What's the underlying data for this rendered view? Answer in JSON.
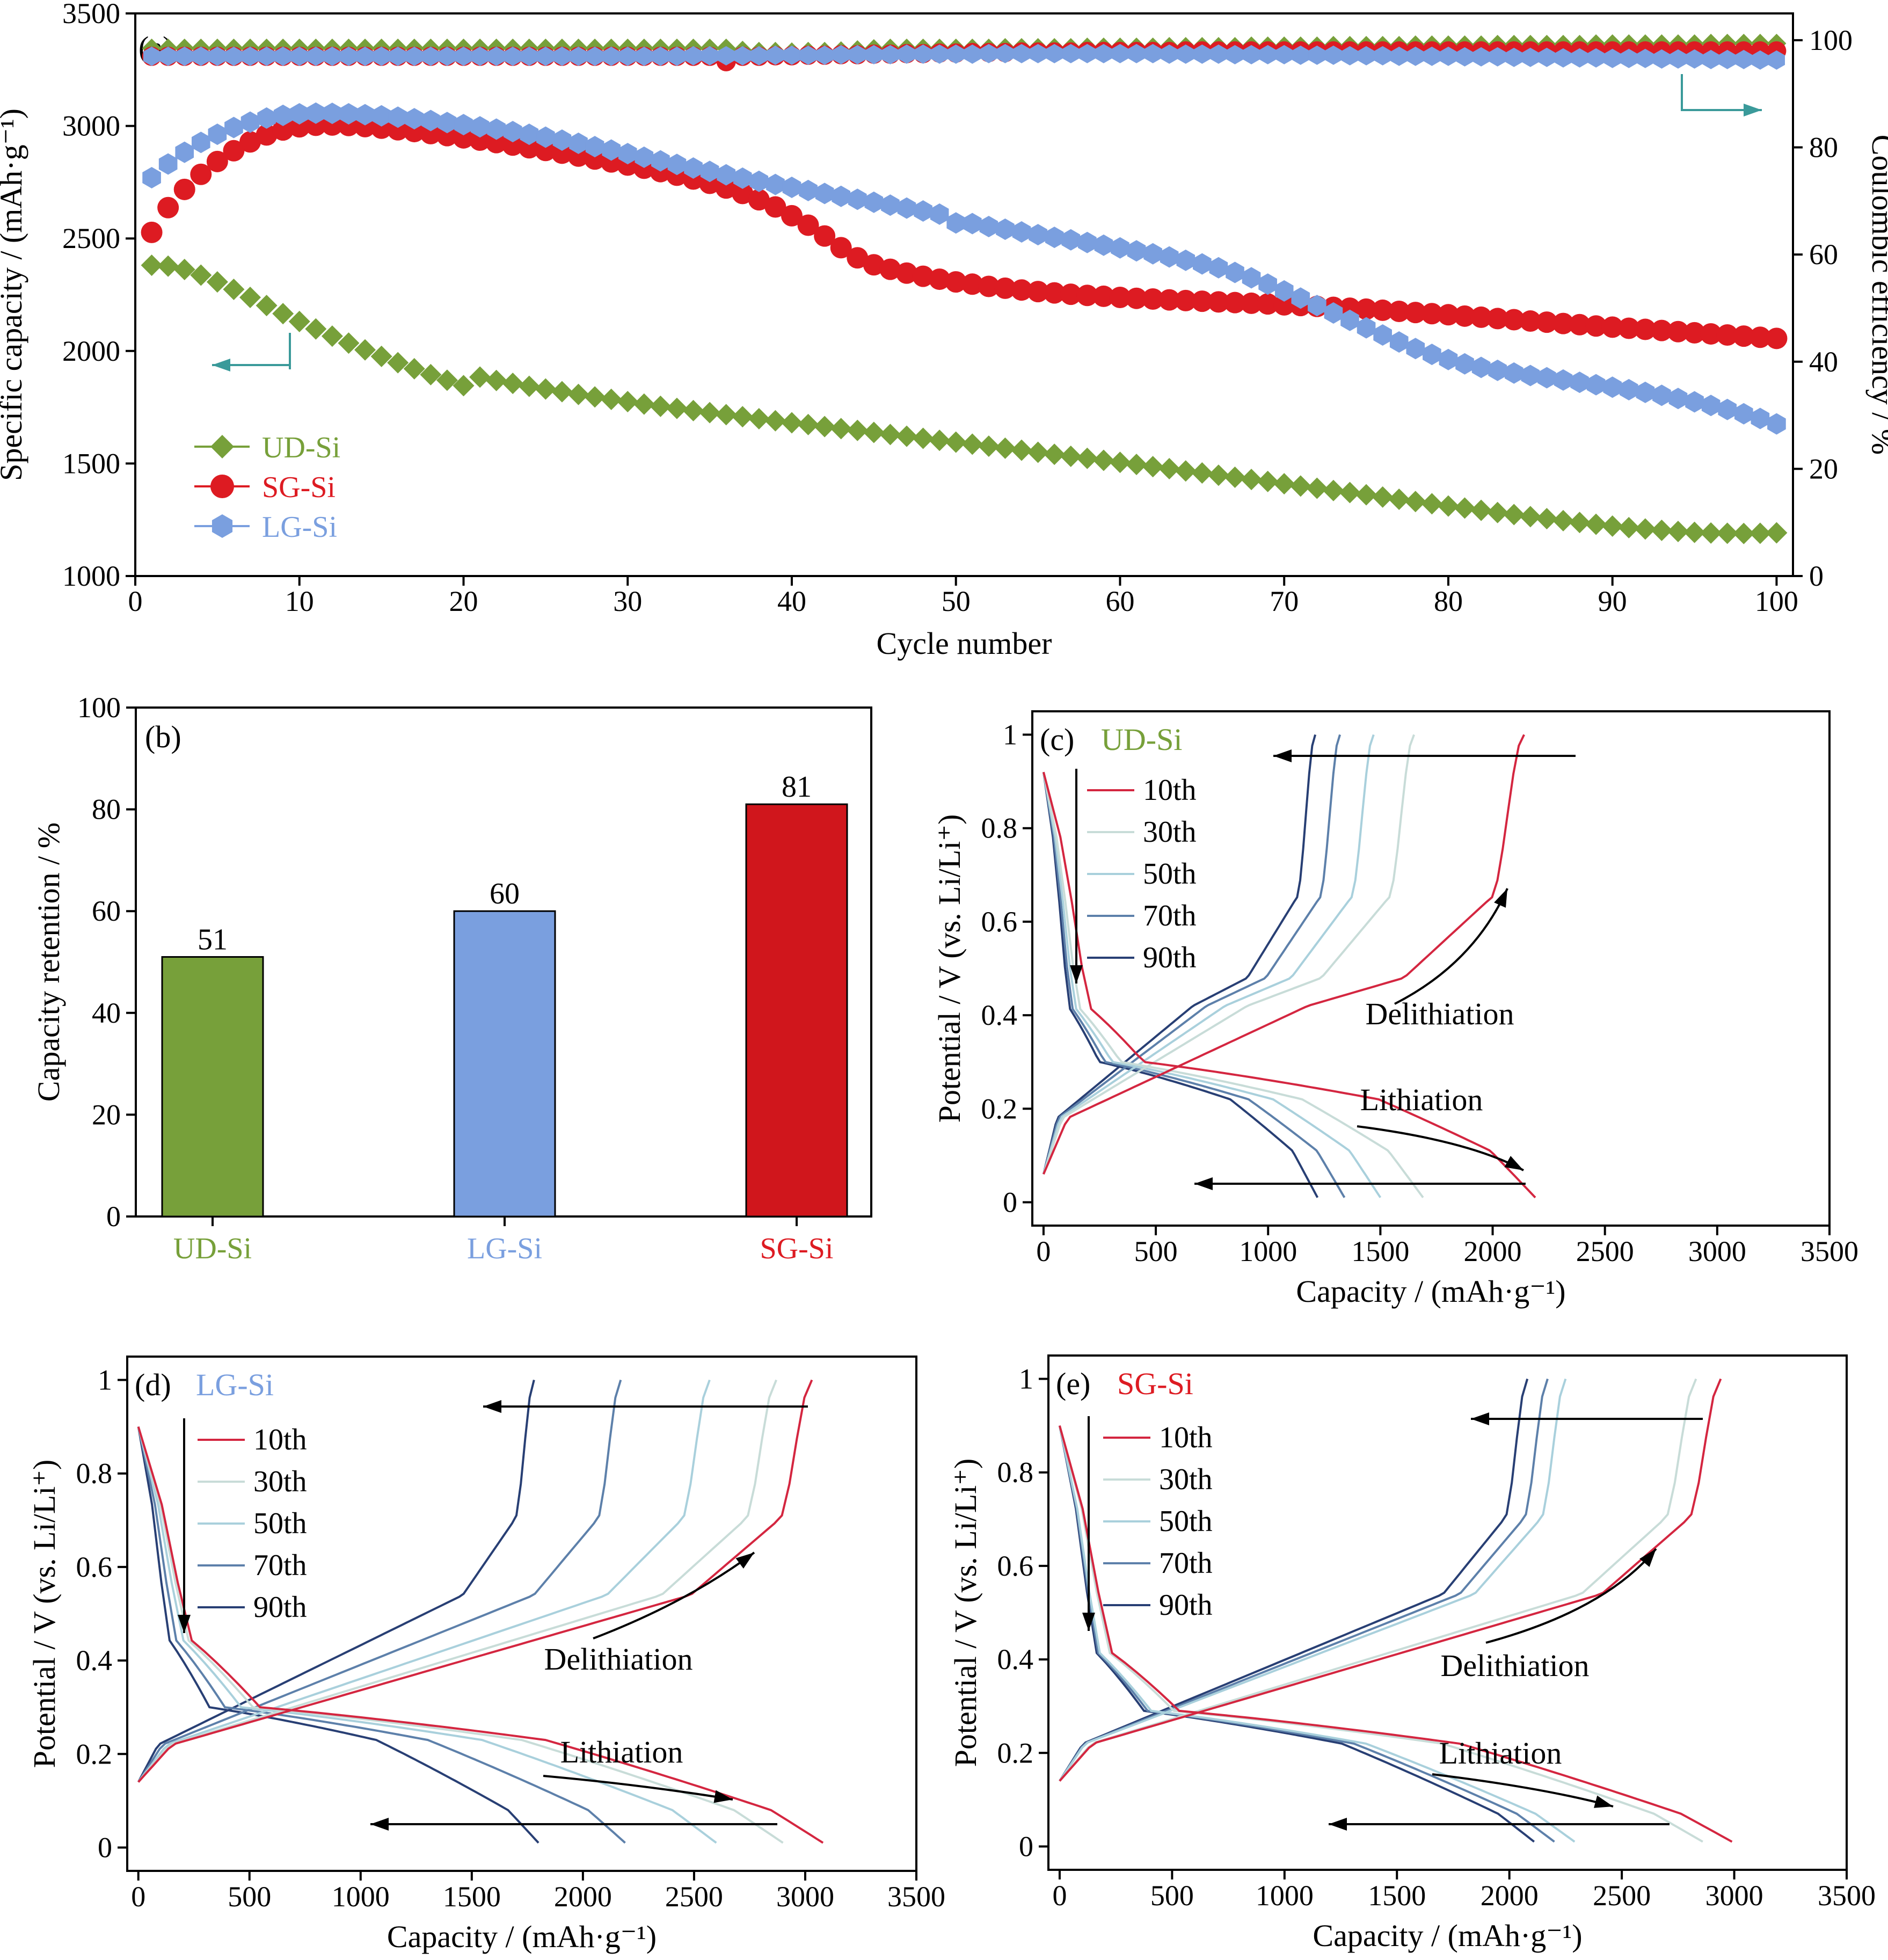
{
  "colors": {
    "ud": "#77a03a",
    "sg": "#dd1b22",
    "lg": "#7a9fdf",
    "c10": "#d42640",
    "c30": "#c8dcd8",
    "c50": "#a9d0dc",
    "c70": "#5d80aa",
    "c90": "#283f74",
    "teal": "#3a9a9a"
  },
  "chart_data": [
    {
      "panel": "(a)",
      "type": "scatter",
      "xlabel": "Cycle number",
      "ylabel": "Specific capacity / (mAh·g⁻¹)",
      "y2label": "Coulombic efficiency / %",
      "xlim": [
        0,
        101
      ],
      "ylim": [
        1000,
        3500
      ],
      "y2lim": [
        0,
        105
      ],
      "xticks": [
        0,
        10,
        20,
        30,
        40,
        50,
        60,
        70,
        80,
        90,
        100
      ],
      "yticks": [
        1000,
        1500,
        2000,
        2500,
        3000,
        3500
      ],
      "y2ticks": [
        0,
        20,
        40,
        60,
        80,
        100
      ],
      "legend": "bottom-left",
      "x": [
        1,
        2,
        3,
        4,
        5,
        6,
        7,
        8,
        9,
        10,
        11,
        12,
        13,
        14,
        15,
        16,
        17,
        18,
        19,
        20,
        21,
        22,
        23,
        24,
        25,
        26,
        27,
        28,
        29,
        30,
        31,
        32,
        33,
        34,
        35,
        36,
        37,
        38,
        39,
        40,
        41,
        42,
        43,
        44,
        45,
        46,
        47,
        48,
        49,
        50,
        51,
        52,
        53,
        54,
        55,
        56,
        57,
        58,
        59,
        60,
        61,
        62,
        63,
        64,
        65,
        66,
        67,
        68,
        69,
        70,
        71,
        72,
        73,
        74,
        75,
        76,
        77,
        78,
        79,
        80,
        81,
        82,
        83,
        84,
        85,
        86,
        87,
        88,
        89,
        90,
        91,
        92,
        93,
        94,
        95,
        96,
        97,
        98,
        99,
        100
      ],
      "series": [
        {
          "name": "UD-Si",
          "color": "ud",
          "marker": "diamond",
          "capacity": [
            2381,
            2377,
            2362,
            2337,
            2307,
            2274,
            2238,
            2202,
            2166,
            2131,
            2098,
            2066,
            2035,
            2005,
            1976,
            1948,
            1921,
            1895,
            1870,
            1846,
            1884,
            1869,
            1856,
            1843,
            1831,
            1819,
            1807,
            1796,
            1785,
            1775,
            1764,
            1754,
            1745,
            1735,
            1726,
            1717,
            1708,
            1699,
            1690,
            1681,
            1673,
            1664,
            1655,
            1647,
            1638,
            1629,
            1621,
            1612,
            1603,
            1595,
            1586,
            1577,
            1568,
            1559,
            1550,
            1541,
            1532,
            1523,
            1514,
            1505,
            1496,
            1486,
            1477,
            1467,
            1458,
            1448,
            1439,
            1429,
            1420,
            1410,
            1400,
            1390,
            1380,
            1371,
            1361,
            1351,
            1341,
            1331,
            1321,
            1311,
            1302,
            1292,
            1282,
            1273,
            1264,
            1255,
            1246,
            1238,
            1230,
            1222,
            1215,
            1209,
            1203,
            1198,
            1194,
            1191,
            1190,
            1189,
            1190,
            1192
          ],
          "ce": [
            98.5,
            98.5,
            98.5,
            98.5,
            98.5,
            98.5,
            98.5,
            98.5,
            98.5,
            98.5,
            98.5,
            98.5,
            98.5,
            98.5,
            98.5,
            98.5,
            98.5,
            98.5,
            98.5,
            98.5,
            98.5,
            98.5,
            98.5,
            98.5,
            98.5,
            98.5,
            98.5,
            98.5,
            98.5,
            98.5,
            98.5,
            98.5,
            98.5,
            98.5,
            98.5,
            98.5,
            98.1,
            97.9,
            97.9,
            97.8,
            97.9,
            97.9,
            98.0,
            98.2,
            98.4,
            98.5,
            98.5,
            98.5,
            98.5,
            98.5,
            98.5,
            98.5,
            98.6,
            98.6,
            98.6,
            98.6,
            98.6,
            98.7,
            98.7,
            98.7,
            98.7,
            98.7,
            98.8,
            98.8,
            98.8,
            98.8,
            98.8,
            98.9,
            98.9,
            98.9,
            98.9,
            98.9,
            99.0,
            99.0,
            99.0,
            99.0,
            99.0,
            99.1,
            99.1,
            99.1,
            99.1,
            99.1,
            99.2,
            99.2,
            99.2,
            99.2,
            99.2,
            99.2,
            99.3,
            99.3,
            99.3,
            99.3,
            99.3,
            99.3,
            99.3,
            99.4,
            99.4,
            99.4,
            99.4,
            99.4
          ]
        },
        {
          "name": "SG-Si",
          "color": "sg",
          "marker": "circle",
          "capacity": [
            2527,
            2637,
            2718,
            2785,
            2842,
            2890,
            2929,
            2960,
            2982,
            2996,
            3003,
            3004,
            3002,
            2997,
            2990,
            2983,
            2975,
            2966,
            2957,
            2947,
            2937,
            2926,
            2915,
            2903,
            2891,
            2879,
            2866,
            2853,
            2840,
            2826,
            2812,
            2797,
            2781,
            2764,
            2745,
            2724,
            2700,
            2672,
            2640,
            2601,
            2559,
            2511,
            2459,
            2414,
            2383,
            2363,
            2346,
            2332,
            2319,
            2307,
            2297,
            2287,
            2279,
            2271,
            2264,
            2258,
            2252,
            2247,
            2243,
            2238,
            2234,
            2231,
            2227,
            2224,
            2221,
            2218,
            2215,
            2212,
            2209,
            2205,
            2202,
            2198,
            2194,
            2190,
            2186,
            2181,
            2176,
            2171,
            2166,
            2161,
            2155,
            2150,
            2144,
            2139,
            2133,
            2128,
            2122,
            2117,
            2111,
            2106,
            2101,
            2096,
            2091,
            2086,
            2081,
            2076,
            2071,
            2066,
            2061,
            2056
          ],
          "ce": [
            97.0,
            97.0,
            97.0,
            97.0,
            97.0,
            97.0,
            97.0,
            97.0,
            97.0,
            97.0,
            97.0,
            97.0,
            97.0,
            97.0,
            97.0,
            97.0,
            97.0,
            97.0,
            97.0,
            97.0,
            97.0,
            97.0,
            97.0,
            97.0,
            97.0,
            97.0,
            97.0,
            97.0,
            97.0,
            97.0,
            97.0,
            97.0,
            97.0,
            97.0,
            97.0,
            96.0,
            97.0,
            97.0,
            97.1,
            97.1,
            97.2,
            97.2,
            97.3,
            97.3,
            97.4,
            97.4,
            97.5,
            97.5,
            97.6,
            97.6,
            97.7,
            97.7,
            97.7,
            97.8,
            97.8,
            97.8,
            97.8,
            97.9,
            97.9,
            97.9,
            97.9,
            97.9,
            97.9,
            98.0,
            98.0,
            98.0,
            98.0,
            98.0,
            98.0,
            98.0,
            98.0,
            98.0,
            98.0,
            98.0,
            98.0,
            98.0,
            98.0,
            98.0,
            98.0,
            98.0,
            98.0,
            98.0,
            98.0,
            98.0,
            98.0,
            98.0,
            98.0,
            98.0,
            98.0,
            98.0,
            98.0,
            98.0,
            98.0,
            98.0,
            98.0,
            98.0,
            98.0,
            98.0,
            98.0,
            98.0
          ]
        },
        {
          "name": "LG-Si",
          "color": "lg",
          "marker": "hexagon",
          "capacity": [
            2770,
            2831,
            2883,
            2927,
            2963,
            2993,
            3017,
            3035,
            3047,
            3054,
            3057,
            3056,
            3054,
            3050,
            3045,
            3039,
            3032,
            3024,
            3015,
            3006,
            2996,
            2986,
            2975,
            2963,
            2950,
            2937,
            2923,
            2908,
            2893,
            2877,
            2861,
            2845,
            2829,
            2813,
            2798,
            2783,
            2768,
            2754,
            2740,
            2727,
            2713,
            2700,
            2687,
            2674,
            2661,
            2648,
            2635,
            2622,
            2608,
            2569,
            2566,
            2553,
            2541,
            2529,
            2517,
            2505,
            2494,
            2482,
            2470,
            2458,
            2445,
            2432,
            2418,
            2403,
            2387,
            2370,
            2349,
            2325,
            2297,
            2267,
            2235,
            2202,
            2169,
            2136,
            2103,
            2071,
            2040,
            2011,
            1985,
            1962,
            1943,
            1927,
            1914,
            1902,
            1891,
            1881,
            1871,
            1861,
            1850,
            1839,
            1828,
            1816,
            1803,
            1789,
            1774,
            1758,
            1740,
            1721,
            1700,
            1676
          ],
          "ce": [
            97.0,
            97.0,
            97.0,
            97.0,
            97.0,
            97.0,
            97.0,
            97.0,
            97.0,
            97.0,
            97.0,
            97.0,
            97.0,
            97.0,
            97.0,
            97.0,
            97.0,
            97.0,
            97.0,
            97.0,
            97.0,
            97.0,
            97.0,
            97.0,
            97.0,
            97.0,
            97.0,
            97.0,
            97.0,
            97.0,
            97.0,
            97.0,
            97.0,
            97.1,
            97.1,
            97.1,
            97.1,
            97.1,
            97.2,
            97.2,
            97.2,
            97.2,
            97.3,
            97.3,
            97.3,
            97.3,
            97.4,
            97.4,
            97.4,
            97.4,
            97.4,
            97.5,
            97.5,
            97.5,
            97.5,
            97.5,
            97.5,
            97.5,
            97.5,
            97.5,
            97.5,
            97.5,
            97.4,
            97.4,
            97.4,
            97.4,
            97.3,
            97.3,
            97.3,
            97.3,
            97.2,
            97.2,
            97.2,
            97.1,
            97.1,
            97.1,
            97.0,
            97.0,
            97.0,
            97.0,
            96.9,
            96.9,
            96.9,
            96.8,
            96.8,
            96.8,
            96.7,
            96.7,
            96.7,
            96.6,
            96.6,
            96.6,
            96.5,
            96.5,
            96.5,
            96.4,
            96.4,
            96.4,
            96.3,
            96.3
          ]
        }
      ]
    },
    {
      "panel": "(b)",
      "type": "bar",
      "ylabel": "Capacity retention / %",
      "ylim": [
        0,
        100
      ],
      "yticks": [
        0,
        20,
        40,
        60,
        80,
        100
      ],
      "categories": [
        "UD-Si",
        "LG-Si",
        "SG-Si"
      ],
      "values": [
        51,
        60,
        81
      ],
      "bar_colors": [
        "#77a03a",
        "#7a9fdf",
        "#d0161c"
      ],
      "label_colors": [
        "ud",
        "lg",
        "sg"
      ]
    },
    {
      "panel": "(c)",
      "type": "line",
      "title": "UD-Si",
      "title_color": "ud",
      "xlabel": "Capacity / (mAh·g⁻¹)",
      "ylabel": "Potential / V (vs. Li/Li⁺)",
      "xlim": [
        -50,
        3500
      ],
      "ylim": [
        -0.05,
        1.05
      ],
      "xticks": [
        0,
        500,
        1000,
        1500,
        2000,
        2500,
        3000,
        3500
      ],
      "yticks": [
        0,
        0.2,
        0.4,
        0.6,
        0.8,
        1.0
      ],
      "annotations": {
        "delith": "Delithiation",
        "lith": "Lithiation"
      },
      "series": [
        {
          "name": "10th",
          "color": "c10",
          "lith_end": 2190,
          "delith_end": 2140,
          "shape": "ud"
        },
        {
          "name": "30th",
          "color": "c30",
          "lith_end": 1690,
          "delith_end": 1650,
          "shape": "ud"
        },
        {
          "name": "50th",
          "color": "c50",
          "lith_end": 1500,
          "delith_end": 1470,
          "shape": "ud"
        },
        {
          "name": "70th",
          "color": "c70",
          "lith_end": 1340,
          "delith_end": 1320,
          "shape": "ud"
        },
        {
          "name": "90th",
          "color": "c90",
          "lith_end": 1220,
          "delith_end": 1210,
          "shape": "ud"
        }
      ]
    },
    {
      "panel": "(d)",
      "type": "line",
      "title": "LG-Si",
      "title_color": "lg",
      "xlabel": "Capacity / (mAh·g⁻¹)",
      "ylabel": "Potential / V (vs. Li/Li⁺)",
      "xlim": [
        -50,
        3500
      ],
      "ylim": [
        -0.05,
        1.05
      ],
      "xticks": [
        0,
        500,
        1000,
        1500,
        2000,
        2500,
        3000,
        3500
      ],
      "yticks": [
        0,
        0.2,
        0.4,
        0.6,
        0.8,
        1.0
      ],
      "annotations": {
        "delith": "Delithiation",
        "lith": "Lithiation"
      },
      "series": [
        {
          "name": "10th",
          "color": "c10",
          "lith_end": 3080,
          "delith_end": 3030,
          "shape": "lg"
        },
        {
          "name": "30th",
          "color": "c30",
          "lith_end": 2900,
          "delith_end": 2870,
          "shape": "lg"
        },
        {
          "name": "50th",
          "color": "c50",
          "lith_end": 2600,
          "delith_end": 2570,
          "shape": "lg"
        },
        {
          "name": "70th",
          "color": "c70",
          "lith_end": 2190,
          "delith_end": 2170,
          "shape": "lg"
        },
        {
          "name": "90th",
          "color": "c90",
          "lith_end": 1800,
          "delith_end": 1780,
          "shape": "lg"
        }
      ]
    },
    {
      "panel": "(e)",
      "type": "line",
      "title": "SG-Si",
      "title_color": "sg",
      "xlabel": "Capacity / (mAh·g⁻¹)",
      "ylabel": "Potential / V (vs. Li/Li⁺)",
      "xlim": [
        -50,
        3500
      ],
      "ylim": [
        -0.05,
        1.05
      ],
      "xticks": [
        0,
        500,
        1000,
        1500,
        2000,
        2500,
        3000,
        3500
      ],
      "yticks": [
        0,
        0.2,
        0.4,
        0.6,
        0.8,
        1.0
      ],
      "annotations": {
        "delith": "Delithiation",
        "lith": "Lithiation"
      },
      "series": [
        {
          "name": "10th",
          "color": "c10",
          "lith_end": 2990,
          "delith_end": 2940,
          "shape": "sg"
        },
        {
          "name": "30th",
          "color": "c30",
          "lith_end": 2860,
          "delith_end": 2830,
          "shape": "sg"
        },
        {
          "name": "50th",
          "color": "c50",
          "lith_end": 2290,
          "delith_end": 2250,
          "shape": "sg"
        },
        {
          "name": "70th",
          "color": "c70",
          "lith_end": 2200,
          "delith_end": 2170,
          "shape": "sg"
        },
        {
          "name": "90th",
          "color": "c90",
          "lith_end": 2110,
          "delith_end": 2080,
          "shape": "sg"
        }
      ]
    }
  ]
}
